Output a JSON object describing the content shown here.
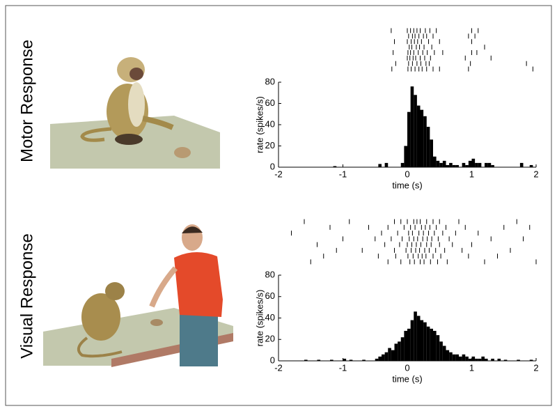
{
  "row_labels": [
    "Motor Response",
    "Visual Response"
  ],
  "chart_data": [
    {
      "type": "histogram",
      "xlabel": "time (s)",
      "ylabel": "rate (spikes/s)",
      "color": "#000000",
      "xlim": [
        -2,
        2
      ],
      "ylim": [
        0,
        80
      ],
      "xticks": [
        -2,
        -1,
        0,
        1,
        2
      ],
      "yticks": [
        0,
        20,
        40,
        60,
        80
      ],
      "grid": false,
      "bins": [
        -2,
        -1.95,
        -1.9,
        -1.85,
        -1.8,
        -1.75,
        -1.7,
        -1.65,
        -1.6,
        -1.55,
        -1.5,
        -1.45,
        -1.4,
        -1.35,
        -1.3,
        -1.25,
        -1.2,
        -1.15,
        -1.1,
        -1.05,
        -1,
        -0.95,
        -0.9,
        -0.85,
        -0.8,
        -0.75,
        -0.7,
        -0.65,
        -0.6,
        -0.55,
        -0.5,
        -0.45,
        -0.4,
        -0.35,
        -0.3,
        -0.25,
        -0.2,
        -0.15,
        -0.1,
        -0.05,
        0,
        0.05,
        0.1,
        0.15,
        0.2,
        0.25,
        0.3,
        0.35,
        0.4,
        0.45,
        0.5,
        0.55,
        0.6,
        0.65,
        0.7,
        0.75,
        0.8,
        0.85,
        0.9,
        0.95,
        1,
        1.05,
        1.1,
        1.15,
        1.2,
        1.25,
        1.3,
        1.35,
        1.4,
        1.45,
        1.5,
        1.55,
        1.6,
        1.65,
        1.7,
        1.75,
        1.8,
        1.85,
        1.9,
        1.95,
        2
      ],
      "values": [
        0,
        0,
        0,
        0,
        0,
        0,
        0,
        0,
        0,
        0,
        0,
        0,
        0,
        0,
        0,
        0,
        0,
        1,
        0,
        0,
        0,
        0,
        0,
        0,
        0,
        0,
        0,
        0,
        0,
        0,
        0,
        3,
        0,
        4,
        0,
        0,
        0,
        0,
        4,
        20,
        52,
        76,
        68,
        58,
        54,
        48,
        38,
        26,
        10,
        6,
        4,
        6,
        2,
        4,
        2,
        2,
        0,
        4,
        2,
        6,
        8,
        4,
        4,
        0,
        4,
        4,
        2,
        0,
        0,
        0,
        0,
        0,
        0,
        0,
        0,
        4,
        0,
        0,
        2,
        0
      ],
      "raster": [
        [
          -0.25,
          0.0,
          0.05,
          0.1,
          0.15,
          0.2,
          0.28,
          0.35,
          0.45,
          1.0,
          1.1
        ],
        [
          0.02,
          0.08,
          0.12,
          0.18,
          0.25,
          0.3,
          0.4,
          0.95,
          1.05
        ],
        [
          -0.2,
          0.0,
          0.06,
          0.11,
          0.16,
          0.22,
          0.33,
          0.5,
          1.0
        ],
        [
          0.03,
          0.07,
          0.14,
          0.19,
          0.26,
          0.38,
          1.2
        ],
        [
          -0.22,
          0.01,
          0.05,
          0.1,
          0.17,
          0.24,
          0.31,
          0.42,
          0.55,
          1.0,
          1.08
        ],
        [
          0.0,
          0.04,
          0.09,
          0.13,
          0.2,
          0.27,
          0.36,
          0.9,
          1.3
        ],
        [
          -0.18,
          0.02,
          0.08,
          0.15,
          0.21,
          0.29,
          0.34,
          0.98,
          1.85
        ],
        [
          -0.24,
          0.01,
          0.06,
          0.12,
          0.18,
          0.23,
          0.3,
          0.4,
          0.5,
          0.95,
          1.95
        ]
      ]
    },
    {
      "type": "histogram",
      "xlabel": "time (s)",
      "ylabel": "rate (spikes/s)",
      "color": "#000000",
      "xlim": [
        -2,
        2
      ],
      "ylim": [
        0,
        80
      ],
      "xticks": [
        -2,
        -1,
        0,
        1,
        2
      ],
      "yticks": [
        0,
        20,
        40,
        60,
        80
      ],
      "grid": false,
      "bins": [
        -2,
        -1.95,
        -1.9,
        -1.85,
        -1.8,
        -1.75,
        -1.7,
        -1.65,
        -1.6,
        -1.55,
        -1.5,
        -1.45,
        -1.4,
        -1.35,
        -1.3,
        -1.25,
        -1.2,
        -1.15,
        -1.1,
        -1.05,
        -1,
        -0.95,
        -0.9,
        -0.85,
        -0.8,
        -0.75,
        -0.7,
        -0.65,
        -0.6,
        -0.55,
        -0.5,
        -0.45,
        -0.4,
        -0.35,
        -0.3,
        -0.25,
        -0.2,
        -0.15,
        -0.1,
        -0.05,
        0,
        0.05,
        0.1,
        0.15,
        0.2,
        0.25,
        0.3,
        0.35,
        0.4,
        0.45,
        0.5,
        0.55,
        0.6,
        0.65,
        0.7,
        0.75,
        0.8,
        0.85,
        0.9,
        0.95,
        1,
        1.05,
        1.1,
        1.15,
        1.2,
        1.25,
        1.3,
        1.35,
        1.4,
        1.45,
        1.5,
        1.55,
        1.6,
        1.65,
        1.7,
        1.75,
        1.8,
        1.85,
        1.9,
        1.95,
        2
      ],
      "values": [
        0,
        0,
        0,
        0,
        0,
        0,
        0,
        0,
        1,
        0,
        0,
        0,
        1,
        0,
        0,
        0,
        1,
        0,
        0,
        0,
        2,
        0,
        1,
        0,
        0,
        0,
        1,
        0,
        0,
        0,
        2,
        4,
        6,
        8,
        12,
        10,
        16,
        18,
        22,
        28,
        30,
        38,
        46,
        42,
        38,
        36,
        32,
        30,
        28,
        24,
        18,
        14,
        10,
        8,
        6,
        6,
        4,
        6,
        4,
        2,
        4,
        2,
        2,
        4,
        2,
        0,
        2,
        0,
        2,
        0,
        1,
        0,
        0,
        0,
        1,
        0,
        0,
        0,
        1,
        0
      ],
      "raster": [
        [
          -1.6,
          -0.9,
          -0.2,
          -0.1,
          0.0,
          0.1,
          0.15,
          0.2,
          0.3,
          0.4,
          0.5,
          0.8,
          1.7
        ],
        [
          -1.2,
          -0.6,
          -0.3,
          -0.05,
          0.05,
          0.12,
          0.22,
          0.28,
          0.35,
          0.45,
          0.6,
          0.9,
          1.5,
          1.9
        ],
        [
          -1.8,
          -0.4,
          -0.15,
          0.02,
          0.08,
          0.18,
          0.25,
          0.33,
          0.42,
          0.55,
          0.75,
          1.1
        ],
        [
          -1.0,
          -0.5,
          -0.25,
          -0.08,
          0.03,
          0.1,
          0.16,
          0.24,
          0.31,
          0.38,
          0.48,
          0.65,
          1.3,
          1.8
        ],
        [
          -1.4,
          -0.35,
          -0.12,
          0.0,
          0.07,
          0.14,
          0.21,
          0.3,
          0.37,
          0.5,
          0.7,
          1.0
        ],
        [
          -1.1,
          -0.7,
          -0.2,
          -0.02,
          0.06,
          0.13,
          0.19,
          0.27,
          0.34,
          0.44,
          0.58,
          0.85,
          1.6
        ],
        [
          -1.3,
          -0.45,
          -0.18,
          0.01,
          0.09,
          0.17,
          0.23,
          0.29,
          0.4,
          0.52,
          0.95,
          1.4
        ],
        [
          -1.5,
          -0.3,
          -0.1,
          0.04,
          0.11,
          0.2,
          0.26,
          0.36,
          0.47,
          0.62,
          1.2,
          2.0
        ]
      ]
    }
  ]
}
